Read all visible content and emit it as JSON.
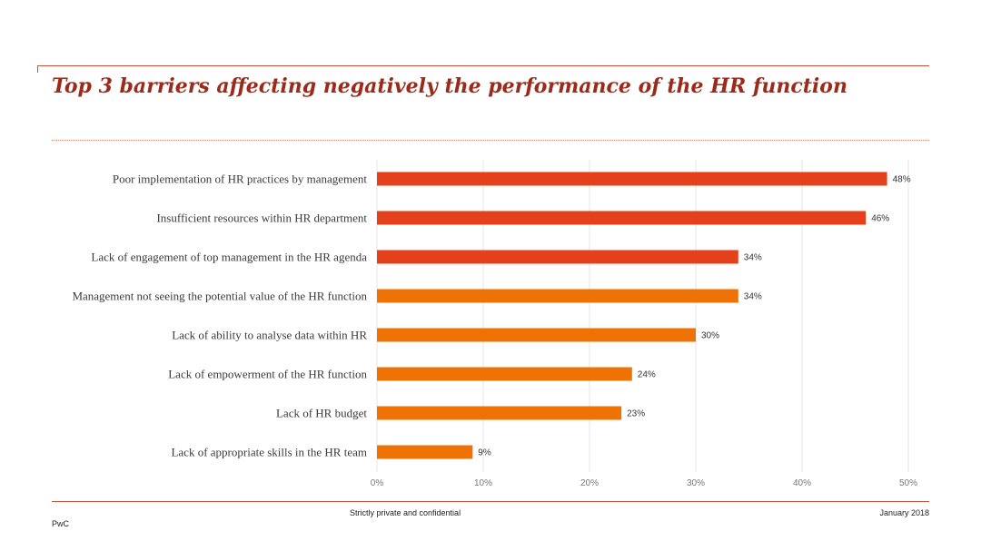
{
  "title": "Top 3 barriers affecting negatively the performance of the HR function",
  "footer": {
    "confidential": "Strictly private and confidential",
    "date": "January 2018",
    "brand": "PwC"
  },
  "colors": {
    "accent_red": "#e4401c",
    "accent_orange": "#ef7304",
    "rule": "#c8523a",
    "title": "#9c2a1a"
  },
  "chart_data": {
    "type": "bar",
    "orientation": "horizontal",
    "categories": [
      "Poor implementation of HR practices by management",
      "Insufficient resources within HR department",
      "Lack of engagement of top management in the HR agenda",
      "Management not seeing the potential value of the HR function",
      "Lack of ability to analyse data within HR",
      "Lack of empowerment of the HR function",
      "Lack of HR budget",
      "Lack of appropriate skills in the HR team"
    ],
    "values": [
      48,
      46,
      34,
      34,
      30,
      24,
      23,
      9
    ],
    "value_labels": [
      "48%",
      "46%",
      "34%",
      "34%",
      "30%",
      "24%",
      "23%",
      "9%"
    ],
    "highlight_top": 3,
    "xlim": [
      0,
      50
    ],
    "xticks": [
      0,
      10,
      20,
      30,
      40,
      50
    ],
    "xtick_labels": [
      "0%",
      "10%",
      "20%",
      "30%",
      "40%",
      "50%"
    ],
    "grid": true,
    "legend": "none"
  }
}
